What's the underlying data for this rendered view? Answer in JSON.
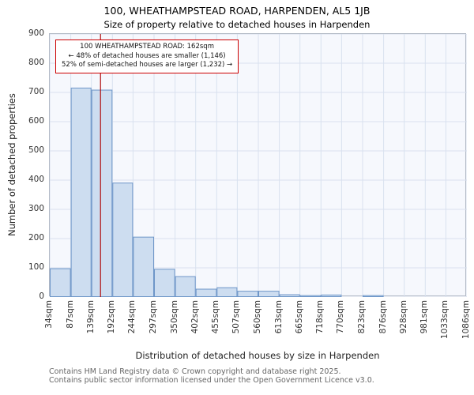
{
  "chart_data": {
    "type": "bar",
    "title": "100, WHEATHAMPSTEAD ROAD, HARPENDEN, AL5 1JB",
    "subtitle": "Size of property relative to detached houses in Harpenden",
    "xlabel": "Distribution of detached houses by size in Harpenden",
    "ylabel": "Number of detached properties",
    "ylim": [
      0,
      900
    ],
    "y_ticks": [
      0,
      100,
      200,
      300,
      400,
      500,
      600,
      700,
      800,
      900
    ],
    "bin_edges_sqm": [
      34,
      87,
      139,
      192,
      244,
      297,
      350,
      402,
      455,
      507,
      560,
      613,
      665,
      718,
      770,
      823,
      876,
      928,
      981,
      1033,
      1086
    ],
    "x_tick_labels": [
      "34sqm",
      "87sqm",
      "139sqm",
      "192sqm",
      "244sqm",
      "297sqm",
      "350sqm",
      "402sqm",
      "455sqm",
      "507sqm",
      "560sqm",
      "613sqm",
      "665sqm",
      "718sqm",
      "770sqm",
      "823sqm",
      "876sqm",
      "928sqm",
      "981sqm",
      "1033sqm",
      "1086sqm"
    ],
    "values": [
      97,
      715,
      708,
      390,
      205,
      95,
      70,
      27,
      32,
      20,
      20,
      8,
      5,
      7,
      0,
      5,
      0,
      0,
      0,
      0
    ],
    "grid": true,
    "marker": {
      "value_sqm": 162,
      "label": "162sqm"
    },
    "annotation": {
      "line1": "100 WHEATHAMPSTEAD ROAD: 162sqm",
      "line2": "← 48% of detached houses are smaller (1,146)",
      "line3": "52% of semi-detached houses are larger (1,232) →"
    },
    "colors": {
      "bar_fill": "#cdddf0",
      "bar_stroke": "#6e96c8",
      "marker_line": "#b01010",
      "annotation_border": "#cc0000",
      "grid_line": "#d9e1ef",
      "plot_bg": "#f6f8fd"
    }
  },
  "footer": {
    "line1": "Contains HM Land Registry data © Crown copyright and database right 2025.",
    "line2": "Contains public sector information licensed under the Open Government Licence v3.0."
  }
}
